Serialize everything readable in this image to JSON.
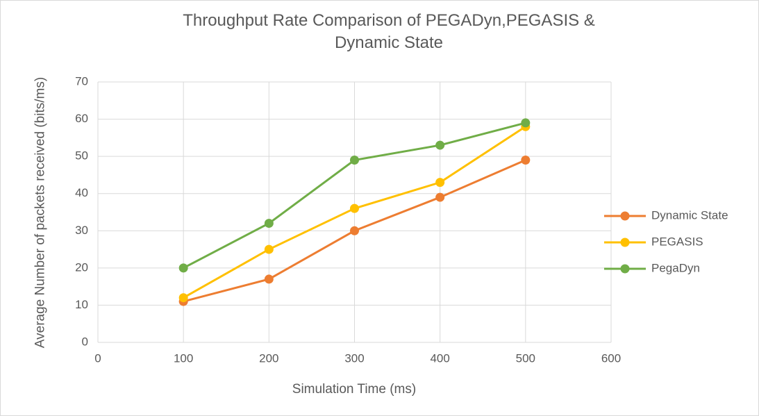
{
  "chart_data": {
    "type": "line",
    "title": "Throughput Rate Comparison of PEGADyn,PEGASIS & Dynamic State",
    "x_label": "Simulation Time (ms)",
    "y_label": "Average Number of packets received (bits/ms)",
    "x": [
      100,
      200,
      300,
      400,
      500
    ],
    "series": [
      {
        "name": "Dynamic State",
        "color": "#ed7d31",
        "values": [
          11,
          17,
          30,
          39,
          49
        ]
      },
      {
        "name": "PEGASIS",
        "color": "#ffc000",
        "values": [
          12,
          25,
          36,
          43,
          58
        ]
      },
      {
        "name": "PegaDyn",
        "color": "#70ad47",
        "values": [
          20,
          32,
          49,
          53,
          59
        ]
      }
    ],
    "xlim": [
      0,
      600
    ],
    "xticks": [
      0,
      100,
      200,
      300,
      400,
      500,
      600
    ],
    "ylim": [
      0,
      70
    ],
    "yticks": [
      0,
      10,
      20,
      30,
      40,
      50,
      60,
      70
    ],
    "grid": true,
    "legend": "right"
  }
}
